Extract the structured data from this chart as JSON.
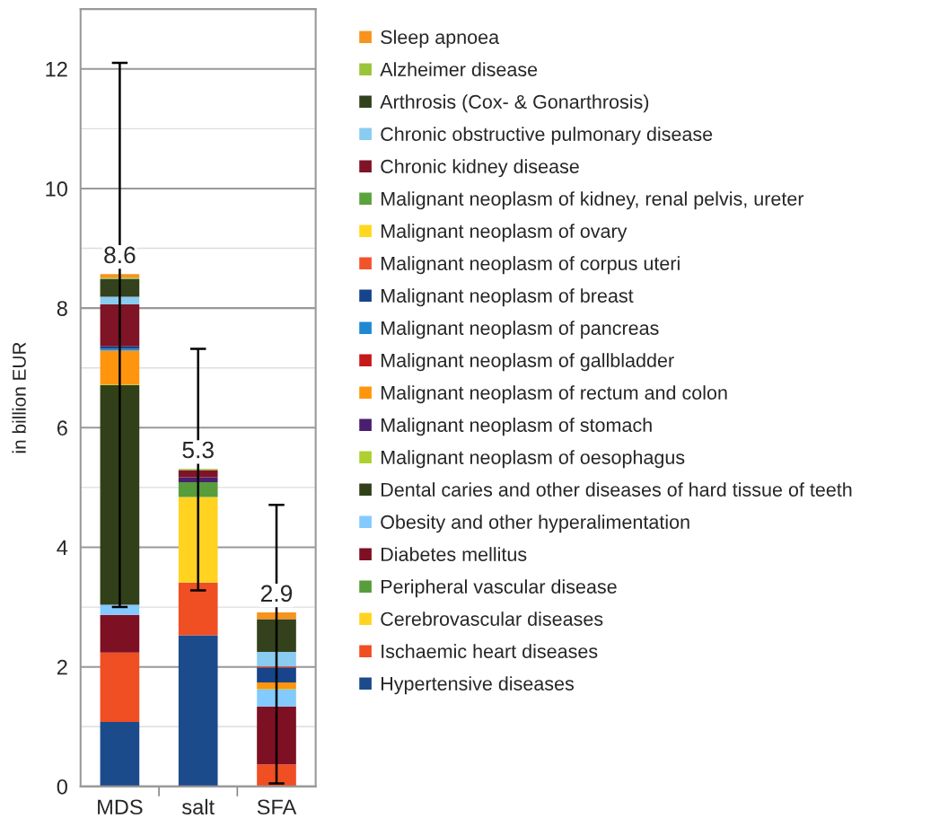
{
  "chart_data": {
    "type": "bar",
    "stacked": true,
    "ylabel": "in billion EUR",
    "categories": [
      "MDS",
      "salt",
      "SFA"
    ],
    "ylim": [
      0,
      13
    ],
    "yticks": [
      0,
      {
        "value": 1,
        "label": null
      },
      2,
      {
        "value": 3,
        "label": null
      },
      4,
      {
        "value": 5,
        "label": null
      },
      6,
      {
        "value": 7,
        "label": null
      },
      8,
      {
        "value": 9,
        "label": null
      },
      10,
      {
        "value": 11,
        "label": null
      },
      12,
      {
        "value": 13,
        "label": null
      }
    ],
    "grid": "y",
    "legend": "right",
    "totals": [
      "8.6",
      "5.3",
      "2.9"
    ],
    "series": [
      {
        "name": "Hypertensive diseases",
        "color": "#1c4b8c",
        "values": [
          1.08,
          2.53,
          0
        ]
      },
      {
        "name": "Ischaemic heart diseases",
        "color": "#f04e23",
        "values": [
          1.16,
          0.88,
          0.37
        ]
      },
      {
        "name": "Cerebrovascular diseases",
        "color": "#ffd320",
        "values": [
          0,
          1.43,
          0
        ]
      },
      {
        "name": "Peripheral vascular disease",
        "color": "#579d3c",
        "values": [
          0,
          0.25,
          0
        ]
      },
      {
        "name": "Diabetes mellitus",
        "color": "#7e1023",
        "values": [
          0.63,
          0,
          0.97
        ]
      },
      {
        "name": "Obesity and other hyperalimentation",
        "color": "#83caff",
        "values": [
          0.17,
          0,
          0.28
        ]
      },
      {
        "name": "Dental caries and other diseases of hard tissue of teeth",
        "color": "#314019",
        "values": [
          3.67,
          0,
          0
        ]
      },
      {
        "name": "Malignant neoplasm of oesophagus",
        "color": "#aecf30",
        "values": [
          0.01,
          0,
          0.01
        ]
      },
      {
        "name": "Malignant neoplasm of stomach",
        "color": "#4b1f6f",
        "values": [
          0,
          0.08,
          0
        ]
      },
      {
        "name": "Malignant neoplasm of rectum and colon",
        "color": "#ff950e",
        "values": [
          0.57,
          0,
          0.11
        ]
      },
      {
        "name": "Malignant neoplasm of gallbladder",
        "color": "#c5191b",
        "values": [
          0,
          0,
          0
        ]
      },
      {
        "name": "Malignant neoplasm of pancreas",
        "color": "#1f88d1",
        "values": [
          0.03,
          0,
          0
        ]
      },
      {
        "name": "Malignant neoplasm of breast",
        "color": "#17448a",
        "values": [
          0.04,
          0,
          0.25
        ]
      },
      {
        "name": "Malignant neoplasm of corpus uteri",
        "color": "#f2532a",
        "values": [
          0,
          0,
          0.02
        ]
      },
      {
        "name": "Malignant neoplasm of ovary",
        "color": "#ffd81f",
        "values": [
          0,
          0,
          0
        ]
      },
      {
        "name": "Malignant neoplasm of kidney, renal pelvis, ureter",
        "color": "#5aa23c",
        "values": [
          0,
          0,
          0
        ]
      },
      {
        "name": "Chronic kidney disease",
        "color": "#7e1426",
        "values": [
          0.7,
          0.12,
          0
        ]
      },
      {
        "name": "Chronic obstructive pulmonary disease",
        "color": "#8acbf0",
        "values": [
          0.13,
          0,
          0.24
        ]
      },
      {
        "name": "Arthrosis (Cox- & Gonarthrosis)",
        "color": "#33421c",
        "values": [
          0.3,
          0,
          0.55
        ]
      },
      {
        "name": "Alzheimer disease",
        "color": "#9ac43a",
        "values": [
          0.02,
          0.02,
          0
        ]
      },
      {
        "name": "Sleep apnoea",
        "color": "#f7931e",
        "values": [
          0.06,
          0,
          0.11
        ],
        "errors": [
          [
            3.0,
            12.1
          ],
          [
            3.28,
            7.32
          ],
          [
            0.05,
            4.71
          ]
        ]
      }
    ]
  }
}
